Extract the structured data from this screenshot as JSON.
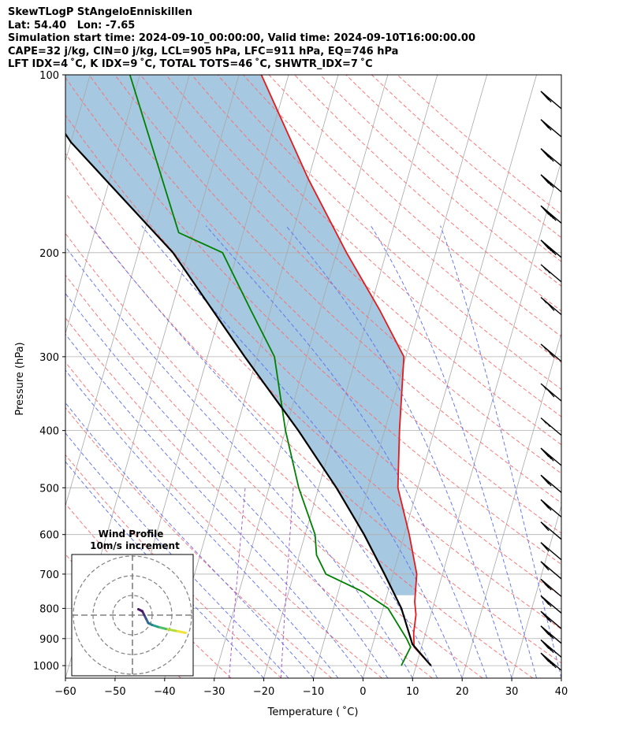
{
  "header": {
    "line1": "SkewTLogP StAngeloEnniskillen",
    "line2": "Lat: 54.40   Lon: -7.65",
    "line3": "Simulation start time: 2024-09-10_00:00:00, Valid time: 2024-09-10T16:00:00.00",
    "line4": "CAPE=32 j/kg, CIN=0 j/kg, LCL=905 hPa, LFC=911 hPa, EQ=746 hPa",
    "line5": "LFT IDX=4 ˚C, K IDX=9 ˚C, TOTAL TOTS=46 ˚C, SHWTR_IDX=7 ˚C"
  },
  "chart_data": {
    "type": "line",
    "subtype": "skew-t log-p diagram",
    "xlabel": "Temperature ( ˚C)",
    "ylabel": "Pressure (hPa)",
    "xlim": [
      -60,
      40
    ],
    "ylim": [
      1050,
      100
    ],
    "yscale": "log",
    "xticks": [
      -60,
      -50,
      -40,
      -30,
      -20,
      -10,
      0,
      10,
      20,
      30,
      40
    ],
    "yticks": [
      1000,
      900,
      800,
      700,
      600,
      500,
      400,
      300,
      200,
      100
    ],
    "grid": true,
    "series": [
      {
        "role": "temperature",
        "color": "#e41a1c",
        "points": [
          [
            13.0,
            1000
          ],
          [
            8.5,
            930
          ],
          [
            7.6,
            880
          ],
          [
            7.0,
            820
          ],
          [
            6.0,
            780
          ],
          [
            4.8,
            700
          ],
          [
            1.0,
            600
          ],
          [
            -4.0,
            500
          ],
          [
            -7.0,
            400
          ],
          [
            -10.4,
            300
          ],
          [
            -18.0,
            250
          ],
          [
            -28.0,
            200
          ],
          [
            -40.0,
            150
          ],
          [
            -55.5,
            100
          ]
        ]
      },
      {
        "role": "dewpoint",
        "color": "#008000",
        "points": [
          [
            7.0,
            1000
          ],
          [
            7.8,
            930
          ],
          [
            6.5,
            900
          ],
          [
            1.0,
            800
          ],
          [
            -5.0,
            750
          ],
          [
            -13.5,
            700
          ],
          [
            -16.5,
            650
          ],
          [
            -18.0,
            600
          ],
          [
            -24.0,
            500
          ],
          [
            -30.0,
            400
          ],
          [
            -36.5,
            300
          ],
          [
            -44.0,
            250
          ],
          [
            -53.0,
            200
          ],
          [
            -63.0,
            185
          ],
          [
            -82.0,
            100
          ]
        ]
      },
      {
        "role": "parcel",
        "color": "#000000",
        "points": [
          [
            13.0,
            1000
          ],
          [
            8.0,
            920
          ],
          [
            3.7,
            800
          ],
          [
            -1.7,
            700
          ],
          [
            -8.1,
            600
          ],
          [
            -16.4,
            500
          ],
          [
            -27.4,
            400
          ],
          [
            -42.5,
            300
          ],
          [
            -63.0,
            200
          ],
          [
            -90.0,
            130
          ],
          [
            -103.0,
            100
          ]
        ]
      }
    ],
    "shaded_cape": {
      "between": [
        "parcel",
        "temperature"
      ],
      "color": "#a6c8e0"
    },
    "wind_barbs": [
      {
        "p": 1000,
        "kt": 45
      },
      {
        "p": 950,
        "kt": 35
      },
      {
        "p": 900,
        "kt": 30
      },
      {
        "p": 850,
        "kt": 25
      },
      {
        "p": 800,
        "kt": 20
      },
      {
        "p": 750,
        "kt": 20
      },
      {
        "p": 700,
        "kt": 15
      },
      {
        "p": 650,
        "kt": 15
      },
      {
        "p": 600,
        "kt": 15
      },
      {
        "p": 550,
        "kt": 20
      },
      {
        "p": 500,
        "kt": 25
      },
      {
        "p": 450,
        "kt": 35
      },
      {
        "p": 400,
        "kt": 55
      },
      {
        "p": 350,
        "kt": 60
      },
      {
        "p": 300,
        "kt": 60
      },
      {
        "p": 250,
        "kt": 60
      },
      {
        "p": 220,
        "kt": 55
      },
      {
        "p": 200,
        "kt": 45
      },
      {
        "p": 175,
        "kt": 40
      },
      {
        "p": 155,
        "kt": 35
      },
      {
        "p": 140,
        "kt": 30
      },
      {
        "p": 125,
        "kt": 25
      },
      {
        "p": 112,
        "kt": 20
      }
    ],
    "hodograph": {
      "title": "Wind Profile",
      "subtitle": "10m/s increment",
      "rings": [
        10,
        20,
        30
      ],
      "points": [
        [
          27,
          -9
        ],
        [
          22,
          -8
        ],
        [
          17,
          -7
        ],
        [
          13,
          -6
        ],
        [
          10,
          -5
        ],
        [
          8,
          -4
        ],
        [
          7,
          -2
        ],
        [
          6,
          0
        ],
        [
          5,
          2
        ],
        [
          3,
          3
        ]
      ]
    }
  }
}
